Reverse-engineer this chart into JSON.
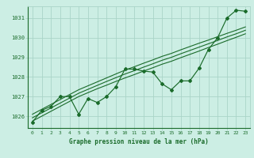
{
  "title": "Graphe pression niveau de la mer (hPa)",
  "bg_color": "#cceee4",
  "grid_color": "#aad4c8",
  "line_color": "#1a6b2a",
  "xlim": [
    -0.5,
    23.5
  ],
  "ylim": [
    1025.4,
    1031.6
  ],
  "yticks": [
    1026,
    1027,
    1028,
    1029,
    1030,
    1031
  ],
  "xtick_labels": [
    "0",
    "1",
    "2",
    "3",
    "4",
    "5",
    "6",
    "7",
    "8",
    "9",
    "10",
    "11",
    "12",
    "13",
    "14",
    "15",
    "16",
    "17",
    "18",
    "19",
    "20",
    "21",
    "22",
    "23"
  ],
  "xticks": [
    0,
    1,
    2,
    3,
    4,
    5,
    6,
    7,
    8,
    9,
    10,
    11,
    12,
    13,
    14,
    15,
    16,
    17,
    18,
    19,
    20,
    21,
    22,
    23
  ],
  "series1": [
    1025.7,
    1026.3,
    1026.5,
    1027.0,
    1027.0,
    1026.1,
    1026.9,
    1026.7,
    1027.0,
    1027.5,
    1028.4,
    1028.4,
    1028.3,
    1028.25,
    1027.65,
    1027.35,
    1027.8,
    1027.8,
    1028.45,
    1029.4,
    1030.0,
    1031.0,
    1031.4,
    1031.35
  ],
  "regression_band_upper": [
    1026.1,
    1026.35,
    1026.6,
    1026.85,
    1027.1,
    1027.35,
    1027.55,
    1027.75,
    1027.95,
    1028.15,
    1028.35,
    1028.52,
    1028.7,
    1028.87,
    1029.05,
    1029.2,
    1029.38,
    1029.55,
    1029.72,
    1029.88,
    1030.05,
    1030.22,
    1030.38,
    1030.55
  ],
  "regression_band_lower": [
    1025.75,
    1026.0,
    1026.25,
    1026.5,
    1026.75,
    1027.0,
    1027.2,
    1027.4,
    1027.58,
    1027.77,
    1027.95,
    1028.12,
    1028.3,
    1028.47,
    1028.65,
    1028.8,
    1028.98,
    1029.15,
    1029.32,
    1029.5,
    1029.67,
    1029.85,
    1030.02,
    1030.2
  ],
  "regression_mid": [
    1025.92,
    1026.17,
    1026.42,
    1026.67,
    1026.92,
    1027.17,
    1027.37,
    1027.57,
    1027.77,
    1027.96,
    1028.15,
    1028.32,
    1028.5,
    1028.67,
    1028.85,
    1029.0,
    1029.18,
    1029.35,
    1029.52,
    1029.69,
    1029.86,
    1030.04,
    1030.2,
    1030.38
  ]
}
